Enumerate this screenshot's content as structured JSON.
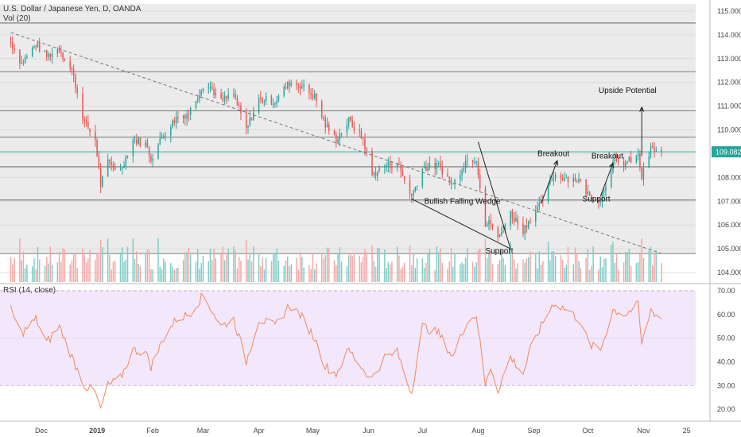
{
  "header": {
    "title": "U.S. Dollar / Japanese Yen, D, OANDA",
    "volume_label": "Vol (20)",
    "rsi_label": "RSI (14, close)"
  },
  "colors": {
    "up": "#26a69a",
    "down": "#ef5350",
    "vol_up": "#7fcdc6",
    "vol_down": "#f7a6a5",
    "rsi_line": "#f08a5d",
    "rsi_band": "#f3e7fb",
    "price_bg": "#ebebeb",
    "last_price_bg": "#26a69a"
  },
  "annotations": {
    "wedge": "Bullish Falling Wedge",
    "support_1": "Support",
    "breakout_1": "Breakout",
    "breakout_2": "Breakout",
    "support_2": "Support",
    "upside": "Upside Potential"
  },
  "chart_data": {
    "type": "candlestick",
    "title": "U.S. Dollar / Japanese Yen, D, OANDA",
    "price_axis": {
      "ylim": [
        103.6,
        115.3
      ],
      "ticks": [
        "104.000",
        "105.000",
        "106.000",
        "107.000",
        "108.000",
        "109.000",
        "110.000",
        "111.000",
        "112.000",
        "113.000",
        "114.000",
        "115.000"
      ],
      "tick_values": [
        104,
        105,
        106,
        107,
        108,
        109,
        110,
        111,
        112,
        113,
        114,
        115
      ],
      "last_price": "109.082",
      "last_value": 109.08
    },
    "horizontal_levels": [
      114.5,
      112.45,
      110.8,
      109.7,
      108.45,
      107.05,
      104.8
    ],
    "trendline": {
      "from": [
        "2018-11-14",
        114.1
      ],
      "to": [
        "2019-11-11",
        104.8
      ]
    },
    "time_axis": {
      "labels": [
        "Dec",
        "2019",
        "Feb",
        "Mar",
        "Apr",
        "May",
        "Jun",
        "Jul",
        "Aug",
        "Sep",
        "Oct",
        "Nov",
        "25"
      ],
      "dates": [
        "2018-12-01",
        "2019-01-01",
        "2019-02-01",
        "2019-03-01",
        "2019-04-01",
        "2019-05-01",
        "2019-06-01",
        "2019-07-01",
        "2019-08-01",
        "2019-09-01",
        "2019-10-01",
        "2019-11-01",
        "2019-11-25"
      ]
    },
    "close_path": [
      [
        "2018-11-14",
        113.7
      ],
      [
        "2018-11-20",
        112.8
      ],
      [
        "2018-11-28",
        113.6
      ],
      [
        "2018-12-04",
        113.1
      ],
      [
        "2018-12-11",
        113.4
      ],
      [
        "2018-12-18",
        112.5
      ],
      [
        "2018-12-25",
        110.3
      ],
      [
        "2018-12-31",
        109.6
      ],
      [
        "2019-01-03",
        107.7
      ],
      [
        "2019-01-07",
        108.6
      ],
      [
        "2019-01-14",
        108.3
      ],
      [
        "2019-01-21",
        109.6
      ],
      [
        "2019-01-28",
        109.4
      ],
      [
        "2019-01-31",
        108.8
      ],
      [
        "2019-02-07",
        109.8
      ],
      [
        "2019-02-14",
        110.5
      ],
      [
        "2019-02-21",
        110.7
      ],
      [
        "2019-03-01",
        111.9
      ],
      [
        "2019-03-05",
        111.8
      ],
      [
        "2019-03-11",
        111.2
      ],
      [
        "2019-03-18",
        111.5
      ],
      [
        "2019-03-25",
        110.0
      ],
      [
        "2019-04-01",
        111.3
      ],
      [
        "2019-04-10",
        111.2
      ],
      [
        "2019-04-18",
        112.0
      ],
      [
        "2019-04-24",
        111.9
      ],
      [
        "2019-05-02",
        111.4
      ],
      [
        "2019-05-08",
        110.2
      ],
      [
        "2019-05-14",
        109.6
      ],
      [
        "2019-05-21",
        110.4
      ],
      [
        "2019-05-29",
        109.6
      ],
      [
        "2019-06-03",
        108.1
      ],
      [
        "2019-06-10",
        108.5
      ],
      [
        "2019-06-17",
        108.6
      ],
      [
        "2019-06-25",
        107.2
      ],
      [
        "2019-07-01",
        108.4
      ],
      [
        "2019-07-10",
        108.5
      ],
      [
        "2019-07-18",
        107.7
      ],
      [
        "2019-07-25",
        108.7
      ],
      [
        "2019-07-31",
        108.8
      ],
      [
        "2019-08-05",
        106.0
      ],
      [
        "2019-08-08",
        106.1
      ],
      [
        "2019-08-12",
        105.4
      ],
      [
        "2019-08-19",
        106.5
      ],
      [
        "2019-08-26",
        105.8
      ],
      [
        "2019-08-30",
        106.3
      ],
      [
        "2019-09-05",
        106.9
      ],
      [
        "2019-09-12",
        108.1
      ],
      [
        "2019-09-19",
        108.0
      ],
      [
        "2019-09-26",
        107.9
      ],
      [
        "2019-10-02",
        107.2
      ],
      [
        "2019-10-08",
        107.1
      ],
      [
        "2019-10-15",
        108.6
      ],
      [
        "2019-10-22",
        108.6
      ],
      [
        "2019-10-29",
        108.9
      ],
      [
        "2019-10-31",
        108.0
      ],
      [
        "2019-11-05",
        109.2
      ],
      [
        "2019-11-11",
        109.08
      ]
    ],
    "volume_axis": {
      "label": "Vol (20)"
    },
    "rsi": {
      "label": "RSI (14, close)",
      "ylim": [
        15,
        73
      ],
      "ticks": [
        "20.00",
        "30.00",
        "40.00",
        "50.00",
        "60.00",
        "70.00"
      ],
      "tick_values": [
        20,
        30,
        40,
        50,
        60,
        70
      ],
      "band": [
        30,
        70
      ],
      "path": [
        [
          "2018-11-14",
          62
        ],
        [
          "2018-11-20",
          52
        ],
        [
          "2018-11-28",
          58
        ],
        [
          "2018-12-04",
          48
        ],
        [
          "2018-12-11",
          55
        ],
        [
          "2018-12-18",
          42
        ],
        [
          "2018-12-25",
          30
        ],
        [
          "2018-12-31",
          27
        ],
        [
          "2019-01-03",
          20
        ],
        [
          "2019-01-07",
          30
        ],
        [
          "2019-01-14",
          33
        ],
        [
          "2019-01-21",
          45
        ],
        [
          "2019-01-28",
          44
        ],
        [
          "2019-01-31",
          38
        ],
        [
          "2019-02-07",
          50
        ],
        [
          "2019-02-14",
          58
        ],
        [
          "2019-02-21",
          60
        ],
        [
          "2019-03-01",
          68
        ],
        [
          "2019-03-05",
          63
        ],
        [
          "2019-03-11",
          55
        ],
        [
          "2019-03-18",
          58
        ],
        [
          "2019-03-25",
          40
        ],
        [
          "2019-04-01",
          58
        ],
        [
          "2019-04-10",
          55
        ],
        [
          "2019-04-18",
          64
        ],
        [
          "2019-04-24",
          60
        ],
        [
          "2019-05-02",
          50
        ],
        [
          "2019-05-08",
          38
        ],
        [
          "2019-05-14",
          35
        ],
        [
          "2019-05-21",
          45
        ],
        [
          "2019-05-29",
          37
        ],
        [
          "2019-06-03",
          33
        ],
        [
          "2019-06-10",
          42
        ],
        [
          "2019-06-17",
          44
        ],
        [
          "2019-06-25",
          27
        ],
        [
          "2019-07-01",
          55
        ],
        [
          "2019-07-10",
          52
        ],
        [
          "2019-07-18",
          42
        ],
        [
          "2019-07-25",
          56
        ],
        [
          "2019-07-31",
          60
        ],
        [
          "2019-08-05",
          30
        ],
        [
          "2019-08-08",
          38
        ],
        [
          "2019-08-12",
          28
        ],
        [
          "2019-08-19",
          42
        ],
        [
          "2019-08-26",
          35
        ],
        [
          "2019-08-30",
          45
        ],
        [
          "2019-09-05",
          55
        ],
        [
          "2019-09-12",
          65
        ],
        [
          "2019-09-19",
          62
        ],
        [
          "2019-09-26",
          58
        ],
        [
          "2019-10-02",
          47
        ],
        [
          "2019-10-08",
          45
        ],
        [
          "2019-10-15",
          62
        ],
        [
          "2019-10-22",
          60
        ],
        [
          "2019-10-29",
          64
        ],
        [
          "2019-10-31",
          47
        ],
        [
          "2019-11-05",
          62
        ],
        [
          "2019-11-11",
          58
        ]
      ]
    }
  }
}
